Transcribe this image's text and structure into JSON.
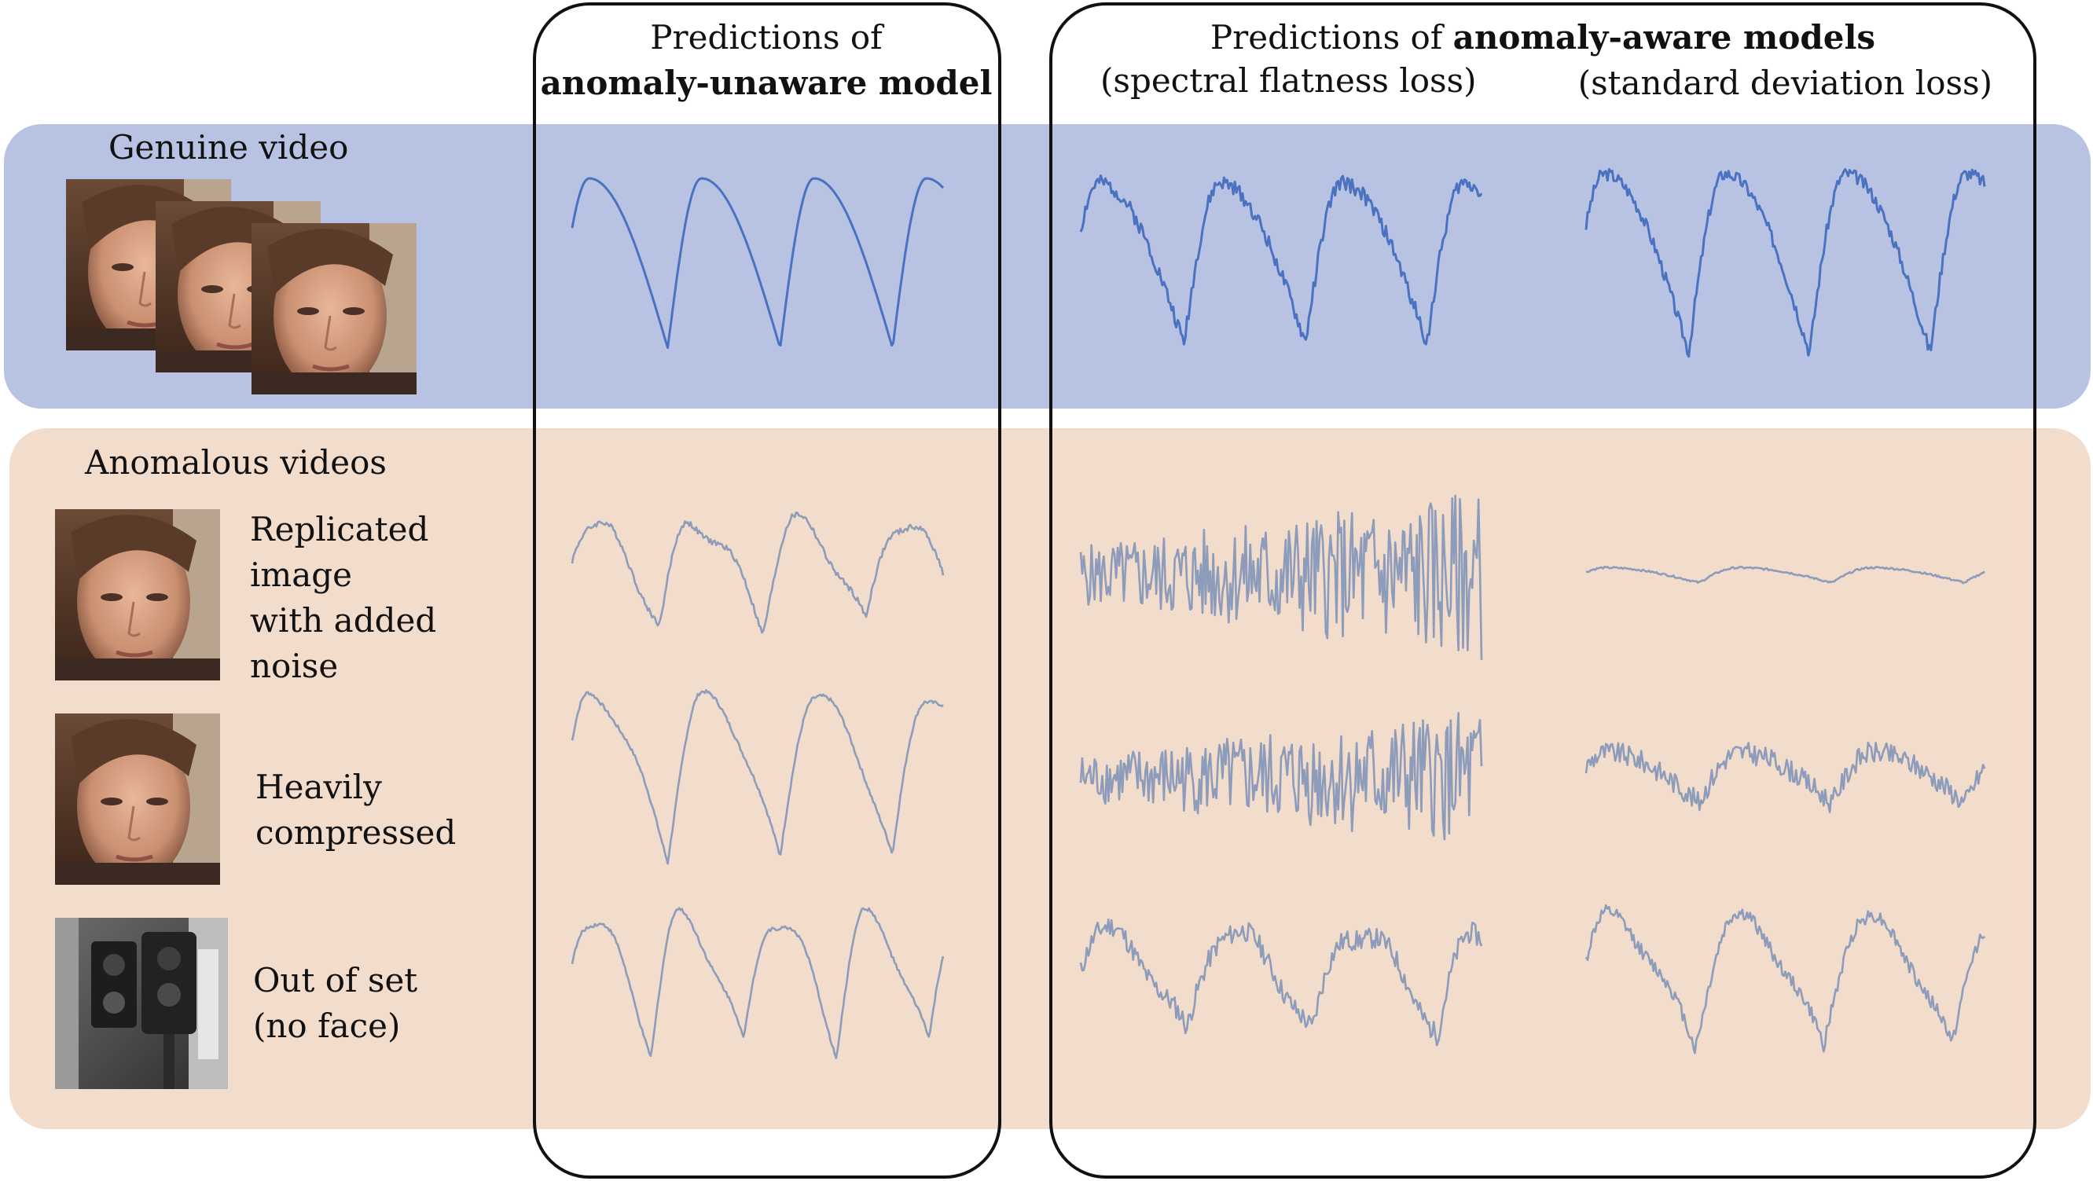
{
  "columns": {
    "unaware": {
      "line1": "Predictions of",
      "line2": "anomaly-unaware model"
    },
    "aware": {
      "title_prefix": "Predictions of ",
      "title_bold": "anomaly-aware models",
      "sub_left": "(spectral flatness loss)",
      "sub_right": "(standard deviation loss)"
    }
  },
  "rows": {
    "genuine": {
      "label": "Genuine video"
    },
    "anomalous": {
      "label": "Anomalous videos"
    },
    "replicated": {
      "lines": [
        "Replicated",
        "image",
        "with added",
        "noise"
      ]
    },
    "compressed": {
      "lines": [
        "Heavily",
        "compressed"
      ]
    },
    "outofset": {
      "lines": [
        "Out of set",
        "(no face)"
      ]
    }
  },
  "colors": {
    "genuine_band": "#b8c3e3",
    "anomalous_band": "#f2dccb",
    "genuine_signal": "#4a72c0",
    "anomalous_signal": "#8c9cba",
    "box_stroke": "#111111"
  },
  "signals": [
    {
      "name": "genuine-unaware-signal",
      "row": "genuine",
      "col": 0,
      "kind": "periodic",
      "cycles": 3.3,
      "amp": 0.9,
      "noise": 0,
      "jitter": 0,
      "seed": 1
    },
    {
      "name": "genuine-sfl-signal",
      "row": "genuine",
      "col": 1,
      "kind": "periodic",
      "cycles": 3.3,
      "amp": 0.85,
      "noise": 0.08,
      "jitter": 0,
      "seed": 2
    },
    {
      "name": "genuine-sdl-signal",
      "row": "genuine",
      "col": 2,
      "kind": "periodic",
      "cycles": 3.3,
      "amp": 0.95,
      "noise": 0.07,
      "jitter": 0,
      "seed": 3
    },
    {
      "name": "replicated-unaware-signal",
      "row": "replicated",
      "col": 0,
      "kind": "periodic",
      "cycles": 3.6,
      "amp": 0.55,
      "noise": 0.03,
      "jitter": 0.25,
      "seed": 4
    },
    {
      "name": "replicated-sfl-signal",
      "row": "replicated",
      "col": 1,
      "kind": "chaos",
      "cycles": 0,
      "amp": 0.9,
      "noise": 0,
      "jitter": 0,
      "seed": 5
    },
    {
      "name": "replicated-sdl-signal",
      "row": "replicated",
      "col": 2,
      "kind": "flat",
      "cycles": 3,
      "amp": 0.08,
      "noise": 0.01,
      "jitter": 0,
      "seed": 6
    },
    {
      "name": "compressed-unaware-signal",
      "row": "compressed",
      "col": 0,
      "kind": "periodic",
      "cycles": 3.3,
      "amp": 0.9,
      "noise": 0.02,
      "jitter": 0.15,
      "seed": 7
    },
    {
      "name": "compressed-sfl-signal",
      "row": "compressed",
      "col": 1,
      "kind": "chaos",
      "cycles": 0,
      "amp": 0.75,
      "noise": 0,
      "jitter": 0,
      "seed": 8
    },
    {
      "name": "compressed-sdl-signal",
      "row": "compressed",
      "col": 2,
      "kind": "periodic",
      "cycles": 3,
      "amp": 0.28,
      "noise": 0.12,
      "jitter": 0,
      "seed": 9
    },
    {
      "name": "outofset-unaware-signal",
      "row": "outofset",
      "col": 0,
      "kind": "periodic",
      "cycles": 4,
      "amp": 0.75,
      "noise": 0.02,
      "jitter": 0.3,
      "seed": 10
    },
    {
      "name": "outofset-sfl-signal",
      "row": "outofset",
      "col": 1,
      "kind": "periodic",
      "cycles": 3.2,
      "amp": 0.6,
      "noise": 0.12,
      "jitter": 0.25,
      "seed": 11
    },
    {
      "name": "outofset-sdl-signal",
      "row": "outofset",
      "col": 2,
      "kind": "periodic",
      "cycles": 3.1,
      "amp": 0.75,
      "noise": 0.08,
      "jitter": 0.2,
      "seed": 12
    }
  ]
}
